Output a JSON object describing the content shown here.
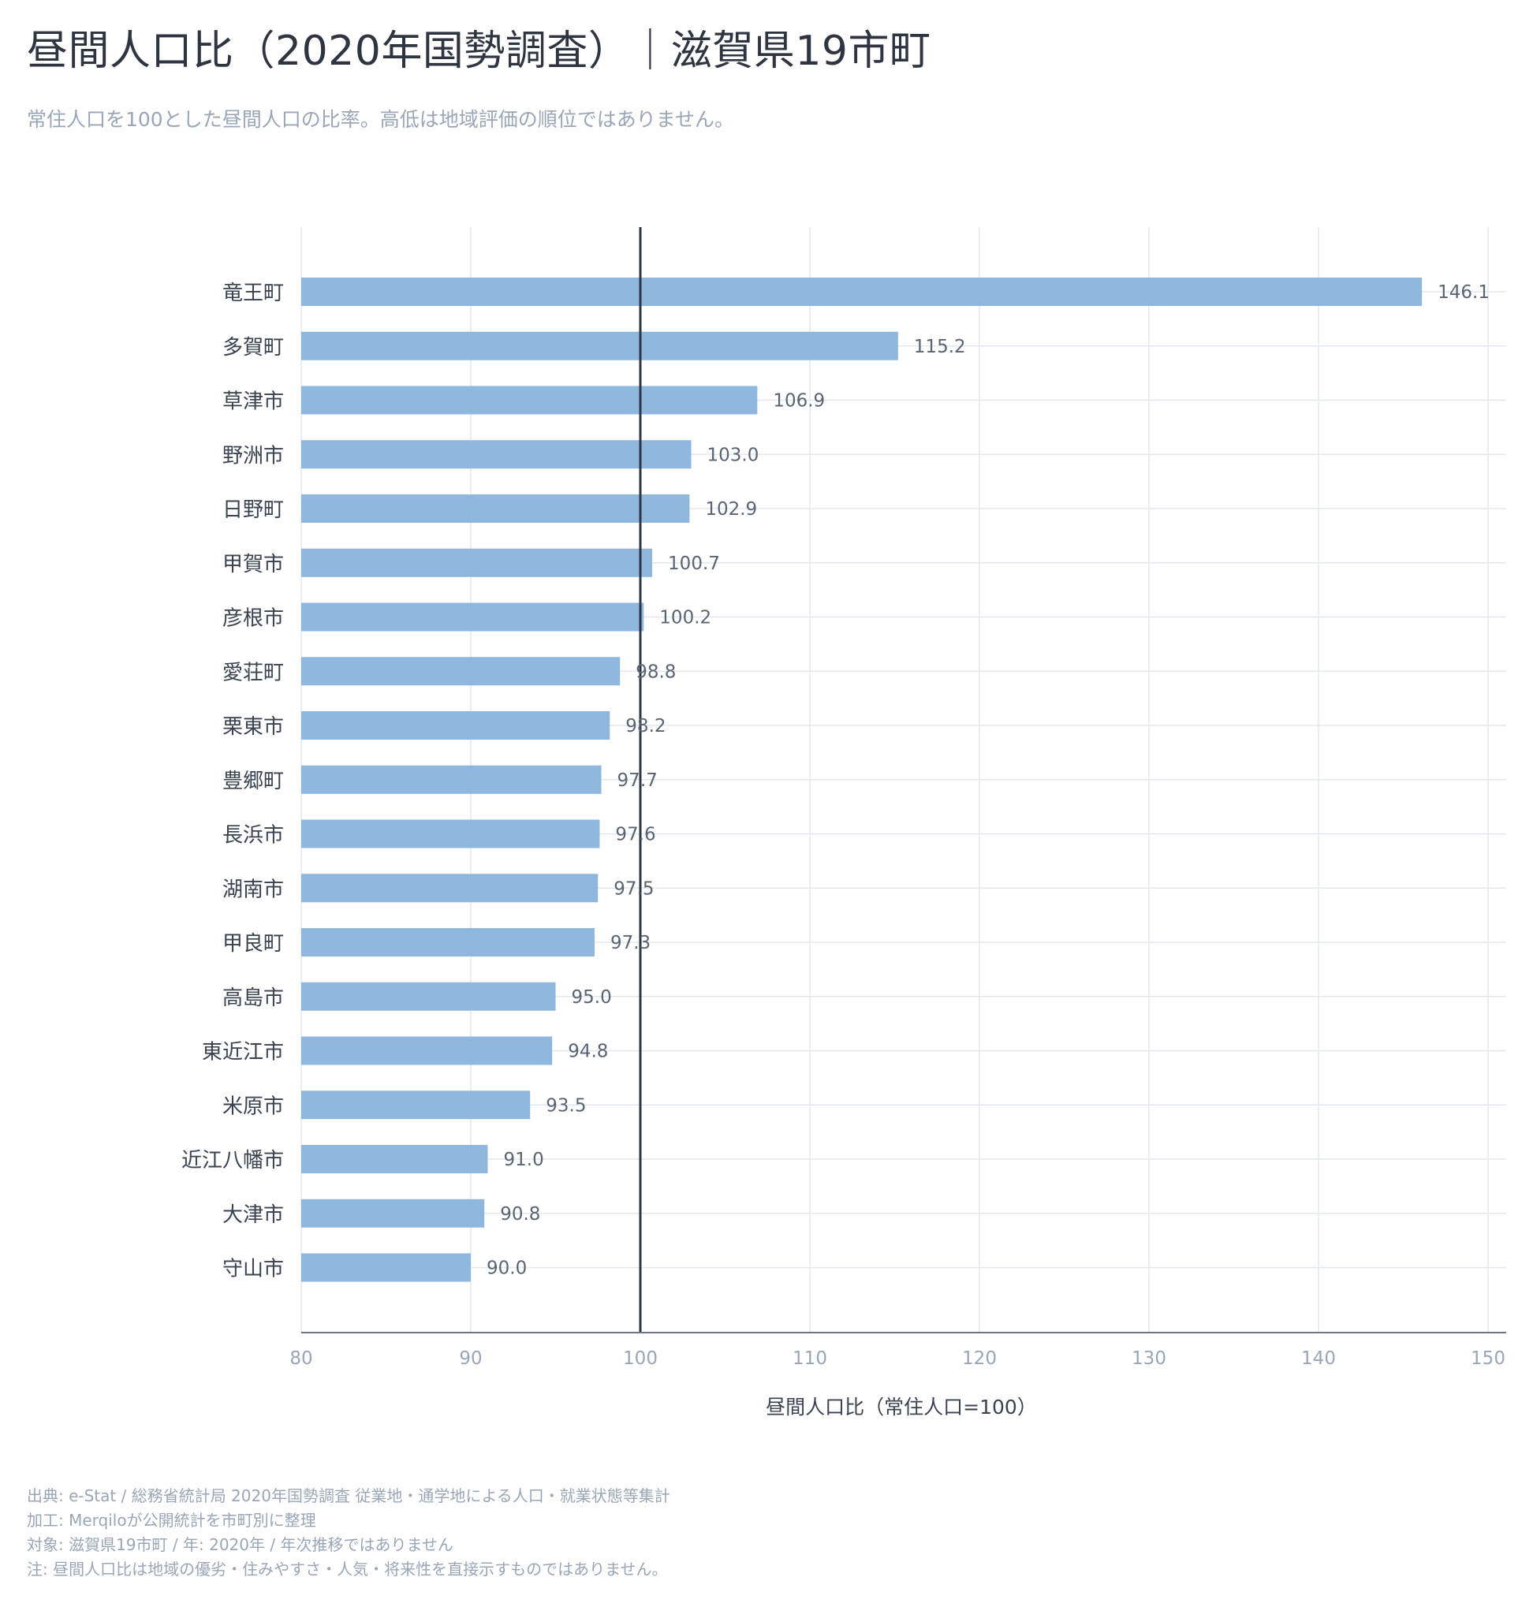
{
  "header": {
    "title": "昼間人口比（2020年国勢調査）｜滋賀県19市町",
    "subtitle": "常住人口を100とした昼間人口の比率。高低は地域評価の順位ではありません。"
  },
  "chart_data": {
    "type": "bar",
    "orientation": "horizontal",
    "categories": [
      "竜王町",
      "多賀町",
      "草津市",
      "野洲市",
      "日野町",
      "甲賀市",
      "彦根市",
      "愛荘町",
      "栗東市",
      "豊郷町",
      "長浜市",
      "湖南市",
      "甲良町",
      "高島市",
      "東近江市",
      "米原市",
      "近江八幡市",
      "大津市",
      "守山市"
    ],
    "values": [
      146.1,
      115.2,
      106.9,
      103.0,
      102.9,
      100.7,
      100.2,
      98.8,
      98.2,
      97.7,
      97.6,
      97.5,
      97.3,
      95.0,
      94.8,
      93.5,
      91.0,
      90.8,
      90.0
    ],
    "value_labels": [
      "146.1",
      "115.2",
      "106.9",
      "103.0",
      "102.9",
      "100.7",
      "100.2",
      "98.8",
      "98.2",
      "97.7",
      "97.6",
      "97.5",
      "97.3",
      "95.0",
      "94.8",
      "93.5",
      "91.0",
      "90.8",
      "90.0"
    ],
    "xlabel": "昼間人口比（常住人口=100）",
    "xlim": [
      80,
      151
    ],
    "xticks": [
      80,
      90,
      100,
      110,
      120,
      130,
      140,
      150
    ],
    "reference_line": 100,
    "grid": true,
    "colors": {
      "bar": "#8fb6dc",
      "reference_line": "#2d3748",
      "grid": "#e3e8ef",
      "axis": "#6b7685",
      "value_label": "#5a6472",
      "category_label": "#3a4250",
      "tick_label": "#9aa6b6"
    }
  },
  "footer": {
    "source": "出典: e-Stat / 総務省統計局 2020年国勢調査 従業地・通学地による人口・就業状態等集計",
    "processing": "加工: Merqiloが公開統計を市町別に整理",
    "target": "対象: 滋賀県19市町 / 年: 2020年 / 年次推移ではありません",
    "note": "注: 昼間人口比は地域の優劣・住みやすさ・人気・将来性を直接示すものではありません。"
  }
}
